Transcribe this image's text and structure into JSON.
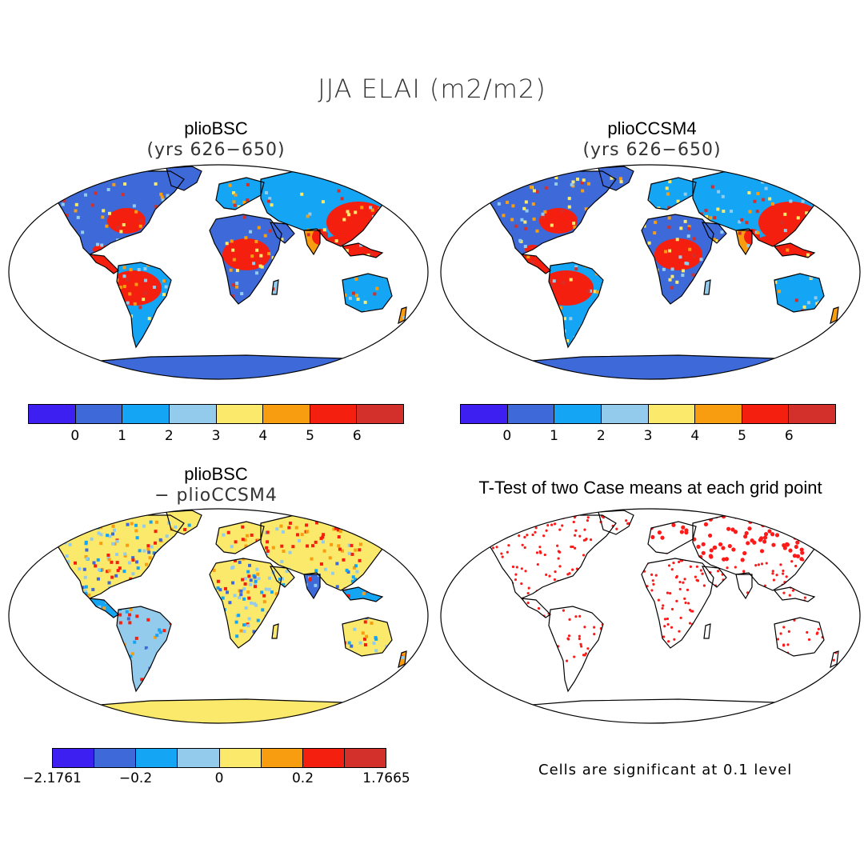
{
  "figure": {
    "title": "JJA ELAI (m2/m2)"
  },
  "panels": [
    {
      "id": "panel-1",
      "title": "plioBSC",
      "subtitle": "(yrs 626−650)",
      "kind": "field"
    },
    {
      "id": "panel-2",
      "title": "plioCCSM4",
      "subtitle": "(yrs 626−650)",
      "kind": "field"
    },
    {
      "id": "panel-3",
      "title": "plioBSC",
      "subtitle": "− plioCCSM4",
      "kind": "difference"
    },
    {
      "id": "panel-4",
      "title": "T-Test of two Case means at each grid point",
      "subtitle": "",
      "kind": "significance"
    }
  ],
  "colorbars": {
    "field": {
      "colors": [
        "#3d1ff2",
        "#3d6ad8",
        "#14a5f4",
        "#93cbec",
        "#fbe96b",
        "#f99d10",
        "#f51f10",
        "#d3302c"
      ],
      "ticks": [
        "0",
        "1",
        "2",
        "3",
        "4",
        "5",
        "6"
      ]
    },
    "difference": {
      "colors": [
        "#3d1ff2",
        "#3d6ad8",
        "#14a5f4",
        "#93cbec",
        "#fbe96b",
        "#f99d10",
        "#f51f10",
        "#d3302c"
      ],
      "ticks": [
        "−2.1761",
        "−0.2",
        "0",
        "0.2",
        "1.7665"
      ]
    }
  },
  "significance_note": "Cells are significant at 0.1 level",
  "palette": {
    "ocean": "#ffffff",
    "coast": "#000000",
    "stipple": "#ff1a1a"
  }
}
